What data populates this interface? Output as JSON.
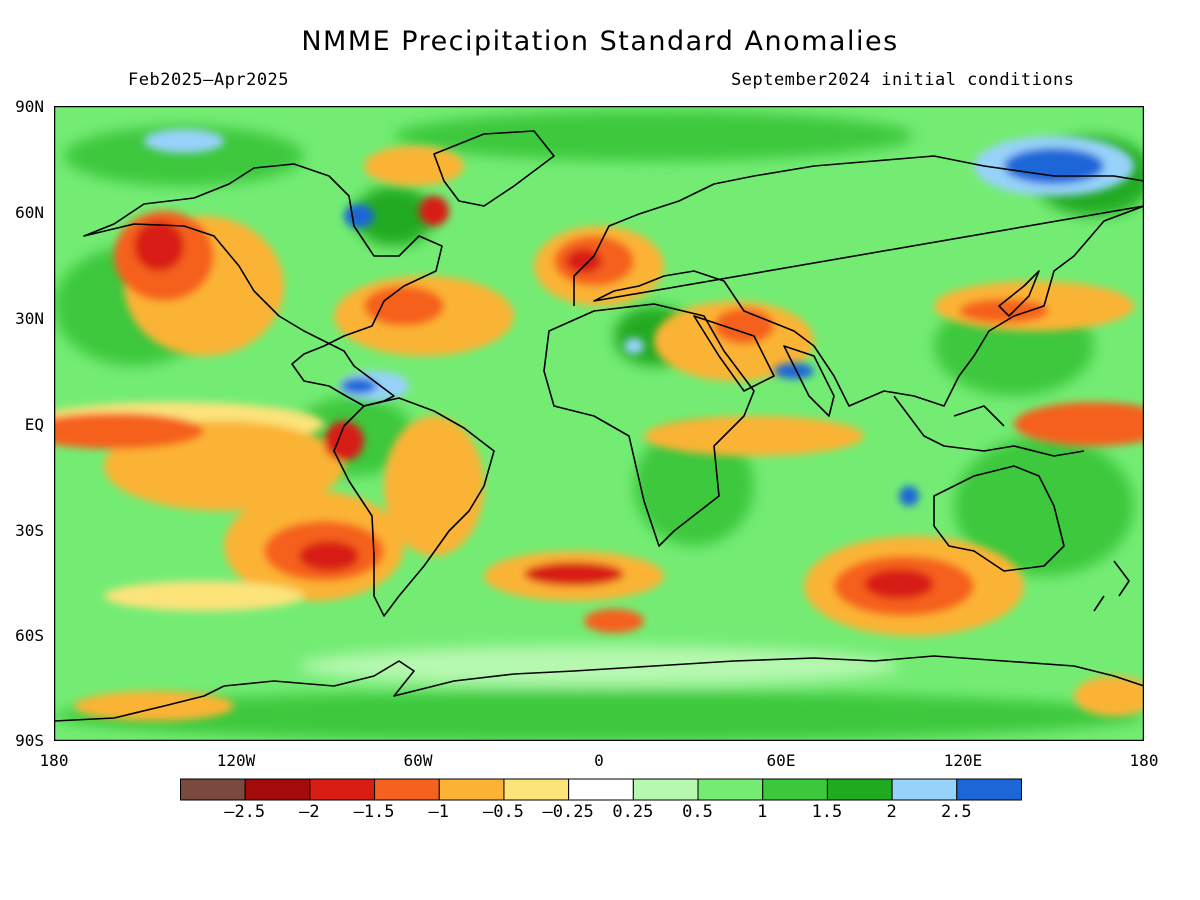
{
  "title": "NMME Precipitation Standard Anomalies",
  "subtitle_left": "Feb2025–Apr2025",
  "subtitle_right": "September2024 initial conditions",
  "lat_labels": [
    "90N",
    "60N",
    "30N",
    "EQ",
    "30S",
    "60S",
    "90S"
  ],
  "lon_labels": [
    "180",
    "120W",
    "60W",
    "0",
    "60E",
    "120E",
    "180"
  ],
  "colorbar": {
    "colors": [
      "#7a4a3e",
      "#a30a0a",
      "#d81e14",
      "#f5611e",
      "#fbb335",
      "#fce37a",
      "#ffffff",
      "#b6f8b0",
      "#74ec74",
      "#3cc83c",
      "#20aa20",
      "#96d2fa",
      "#1c66d8"
    ],
    "labels": [
      "–2.5",
      "–2",
      "–1.5",
      "–1",
      "–0.5",
      "–0.25",
      "0.25",
      "0.5",
      "1",
      "1.5",
      "2",
      "2.5"
    ]
  },
  "map": {
    "background_color": "#74ec74",
    "coastline_color": "#000000",
    "projection": "cylindrical-equidistant",
    "extent": {
      "lon": [
        -180,
        180
      ],
      "lat": [
        -90,
        90
      ]
    }
  }
}
